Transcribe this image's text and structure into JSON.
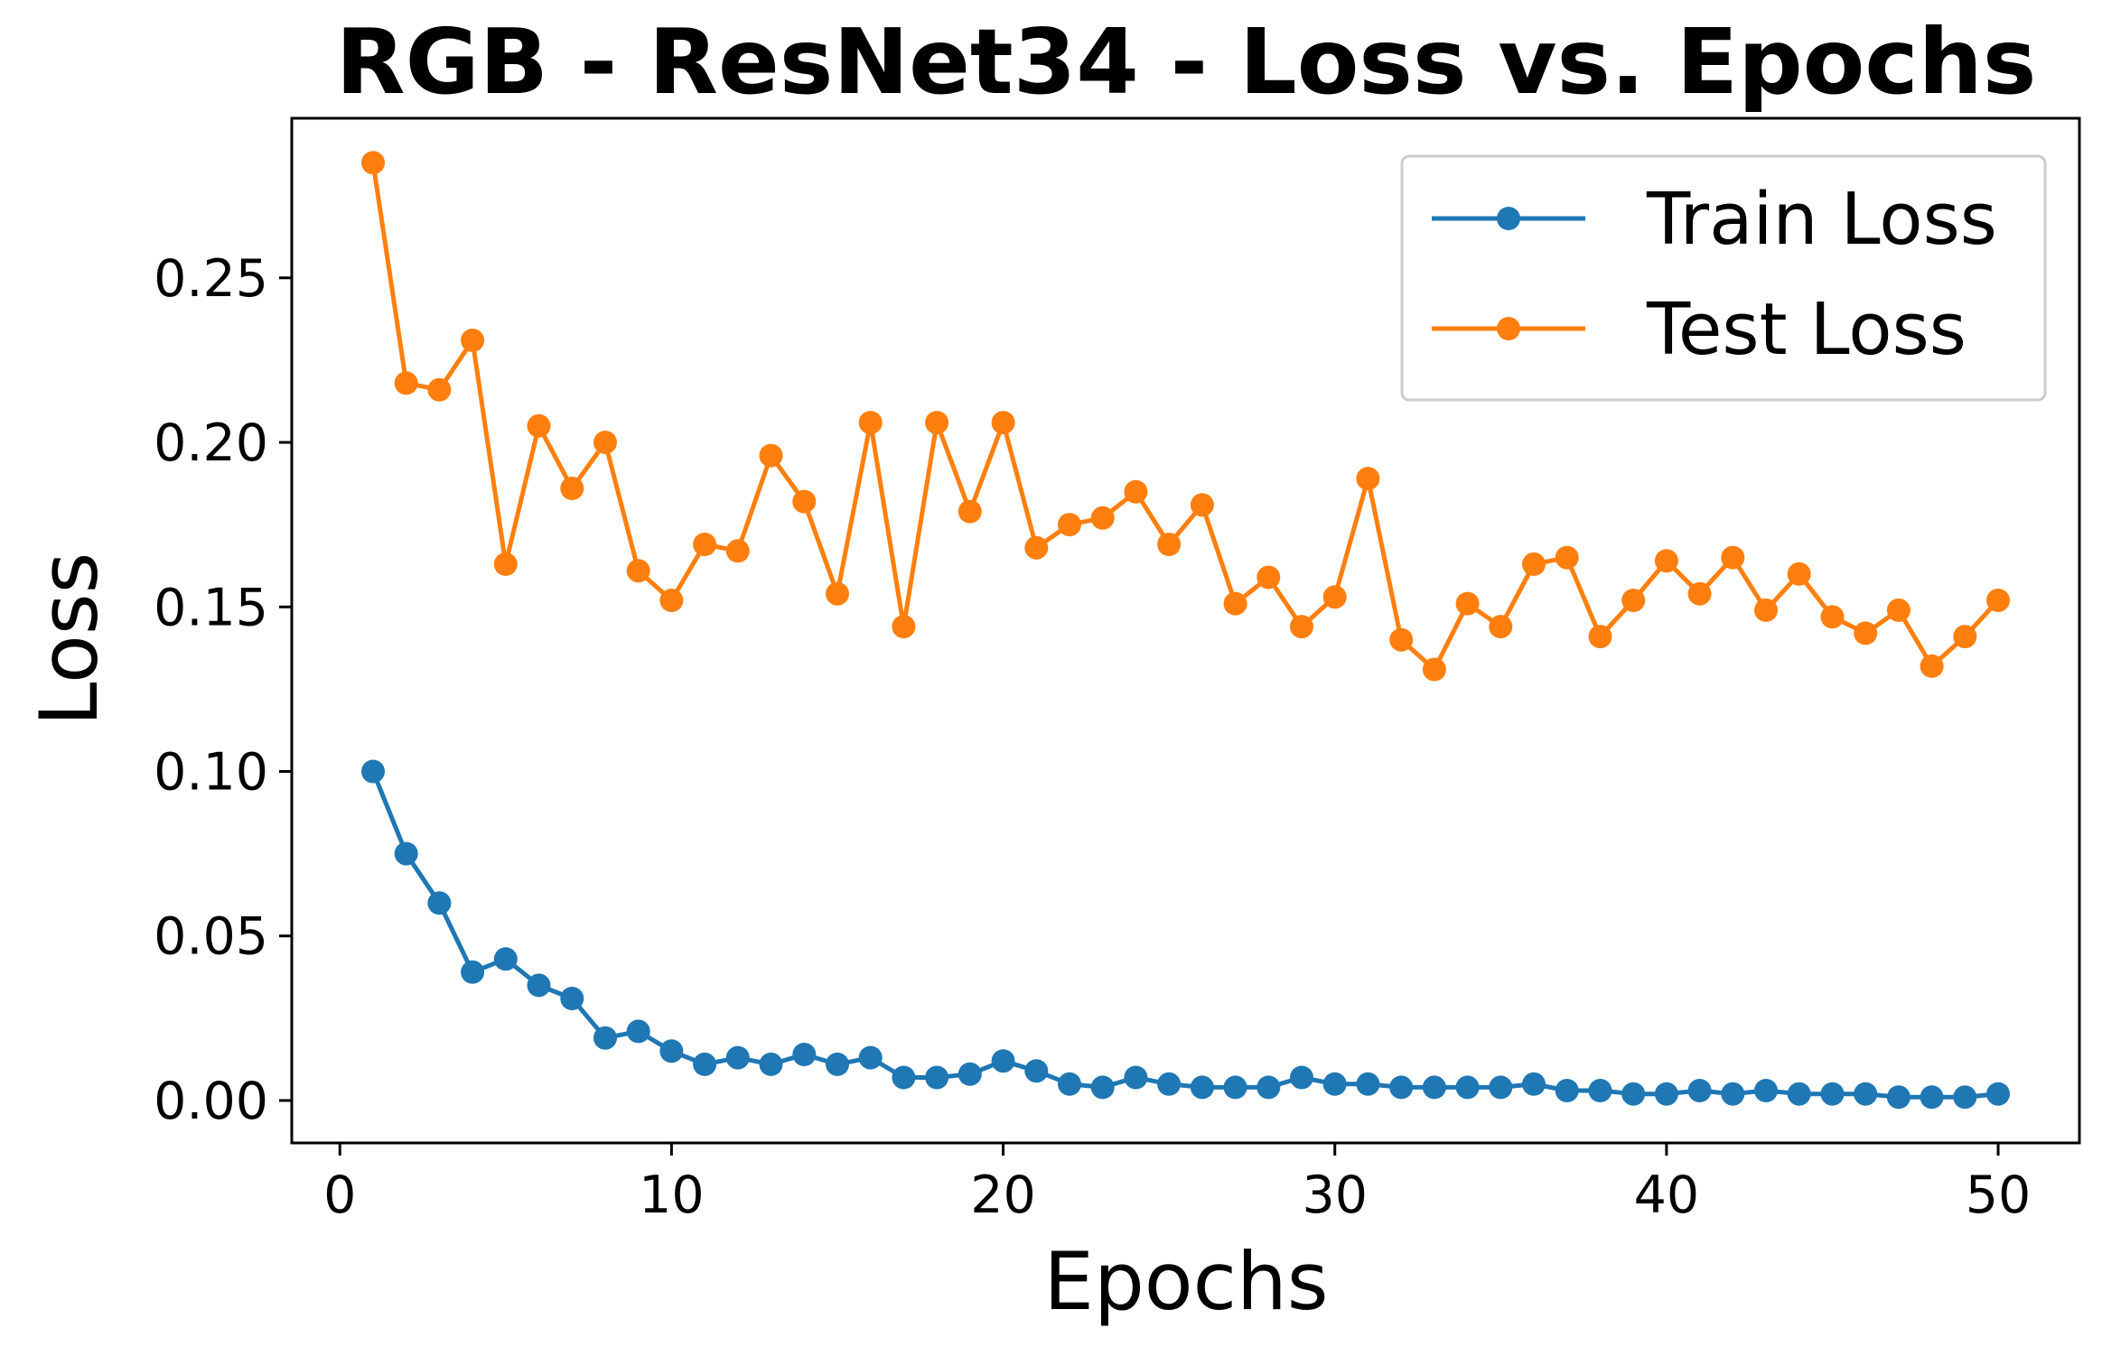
{
  "chart_data": {
    "type": "line",
    "title": "RGB - ResNet34 - Loss vs. Epochs",
    "xlabel": "Epochs",
    "ylabel": "Loss",
    "xlim": [
      -1.45,
      52.45
    ],
    "ylim": [
      -0.0129,
      0.2985
    ],
    "xticks": [
      0,
      10,
      20,
      30,
      40,
      50
    ],
    "xtick_labels": [
      "0",
      "10",
      "20",
      "30",
      "40",
      "50"
    ],
    "yticks": [
      0.0,
      0.05,
      0.1,
      0.15,
      0.2,
      0.25
    ],
    "ytick_labels": [
      "0.00",
      "0.05",
      "0.10",
      "0.15",
      "0.20",
      "0.25"
    ],
    "grid": false,
    "legend_position": "top-right",
    "x": [
      1,
      2,
      3,
      4,
      5,
      6,
      7,
      8,
      9,
      10,
      11,
      12,
      13,
      14,
      15,
      16,
      17,
      18,
      19,
      20,
      21,
      22,
      23,
      24,
      25,
      26,
      27,
      28,
      29,
      30,
      31,
      32,
      33,
      34,
      35,
      36,
      37,
      38,
      39,
      40,
      41,
      42,
      43,
      44,
      45,
      46,
      47,
      48,
      49,
      50
    ],
    "series": [
      {
        "name": "Train Loss",
        "color": "#1f77b4",
        "marker": "circle",
        "values": [
          0.1,
          0.075,
          0.06,
          0.039,
          0.043,
          0.035,
          0.031,
          0.019,
          0.021,
          0.015,
          0.011,
          0.013,
          0.011,
          0.014,
          0.011,
          0.013,
          0.007,
          0.007,
          0.008,
          0.012,
          0.009,
          0.005,
          0.004,
          0.007,
          0.005,
          0.004,
          0.004,
          0.004,
          0.007,
          0.005,
          0.005,
          0.004,
          0.004,
          0.004,
          0.004,
          0.005,
          0.003,
          0.003,
          0.002,
          0.002,
          0.003,
          0.002,
          0.003,
          0.002,
          0.002,
          0.002,
          0.001,
          0.001,
          0.001,
          0.002
        ]
      },
      {
        "name": "Test Loss",
        "color": "#ff7f0e",
        "marker": "circle",
        "values": [
          0.285,
          0.218,
          0.216,
          0.231,
          0.163,
          0.205,
          0.186,
          0.2,
          0.161,
          0.152,
          0.169,
          0.167,
          0.196,
          0.182,
          0.154,
          0.206,
          0.144,
          0.206,
          0.179,
          0.206,
          0.168,
          0.175,
          0.177,
          0.185,
          0.169,
          0.181,
          0.151,
          0.159,
          0.144,
          0.153,
          0.189,
          0.14,
          0.131,
          0.151,
          0.144,
          0.163,
          0.165,
          0.141,
          0.152,
          0.164,
          0.154,
          0.165,
          0.149,
          0.16,
          0.147,
          0.142,
          0.149,
          0.132,
          0.141,
          0.152
        ]
      }
    ]
  }
}
